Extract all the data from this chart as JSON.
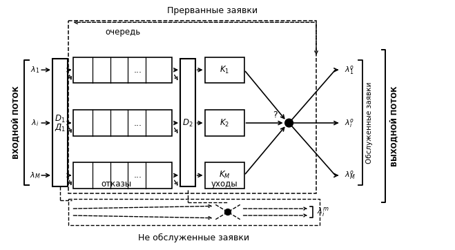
{
  "title": "Прерванные заявки",
  "bottom_label": "Не обслуженные заявки",
  "left_vertical_text": "ВХОДНОЙ ПОТОК",
  "right_vertical_text": "ВЫХОДНОЙ ПОТОК",
  "right_label1": "Обслуженные заявки",
  "queue_label": "очередь",
  "reject_label": "отказы",
  "exit_label": "уходы",
  "bg_color": "#ffffff",
  "fig_width": 6.59,
  "fig_height": 3.62
}
